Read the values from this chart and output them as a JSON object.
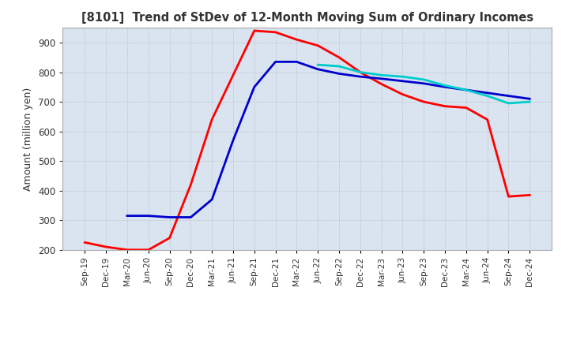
{
  "title": "[8101]  Trend of StDev of 12-Month Moving Sum of Ordinary Incomes",
  "ylabel": "Amount (million yen)",
  "ylim": [
    200,
    950
  ],
  "yticks": [
    200,
    300,
    400,
    500,
    600,
    700,
    800,
    900
  ],
  "background_color": "#ffffff",
  "plot_bg_color": "#d9e4f0",
  "grid_color": "#aaaaaa",
  "line_colors": {
    "3y": "#ff0000",
    "5y": "#0000cc",
    "7y": "#00cccc",
    "10y": "#008000"
  },
  "x_labels": [
    "Sep-19",
    "Dec-19",
    "Mar-20",
    "Jun-20",
    "Sep-20",
    "Dec-20",
    "Mar-21",
    "Jun-21",
    "Sep-21",
    "Dec-21",
    "Mar-22",
    "Jun-22",
    "Sep-22",
    "Dec-22",
    "Mar-23",
    "Jun-23",
    "Sep-23",
    "Dec-23",
    "Mar-24",
    "Jun-24",
    "Sep-24",
    "Dec-24"
  ],
  "data_3y": [
    225,
    210,
    200,
    200,
    240,
    420,
    640,
    790,
    940,
    935,
    910,
    890,
    850,
    800,
    760,
    725,
    700,
    685,
    680,
    640,
    380,
    385
  ],
  "data_5y": [
    null,
    null,
    315,
    315,
    310,
    310,
    370,
    570,
    750,
    835,
    835,
    810,
    795,
    785,
    778,
    770,
    762,
    750,
    740,
    730,
    720,
    710
  ],
  "data_7y": [
    null,
    null,
    null,
    null,
    null,
    null,
    null,
    null,
    null,
    null,
    null,
    825,
    820,
    800,
    790,
    785,
    775,
    755,
    740,
    720,
    695,
    700
  ],
  "data_10y": [
    null,
    null,
    null,
    null,
    null,
    null,
    null,
    null,
    null,
    null,
    null,
    null,
    null,
    null,
    null,
    null,
    null,
    null,
    null,
    null,
    null,
    null
  ]
}
